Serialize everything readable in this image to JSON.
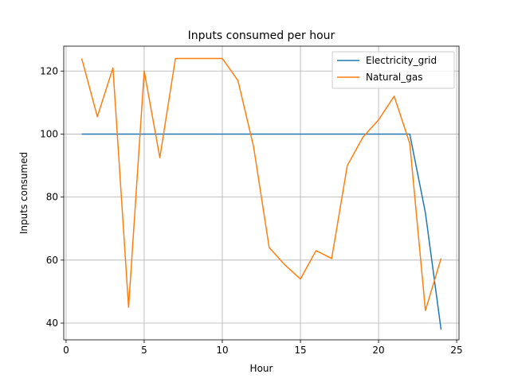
{
  "chart_data": {
    "type": "line",
    "title": "Inputs consumed per hour",
    "xlabel": "Hour",
    "ylabel": "Inputs consumed",
    "xlim": [
      -0.15,
      25.15
    ],
    "ylim": [
      34.7,
      127.9
    ],
    "xticks": [
      0,
      5,
      10,
      15,
      20,
      25
    ],
    "yticks": [
      40,
      60,
      80,
      100,
      120
    ],
    "grid": true,
    "legend_position": "top-right",
    "x": [
      1,
      2,
      3,
      4,
      5,
      6,
      7,
      8,
      9,
      10,
      11,
      12,
      13,
      14,
      15,
      16,
      17,
      18,
      19,
      20,
      21,
      22,
      23,
      24
    ],
    "series": [
      {
        "name": "Electricity_grid",
        "color": "#1f77b4",
        "values": [
          100,
          100,
          100,
          100,
          100,
          100,
          100,
          100,
          100,
          100,
          100,
          100,
          100,
          100,
          100,
          100,
          100,
          100,
          100,
          100,
          100,
          100,
          75,
          38
        ]
      },
      {
        "name": "Natural_gas",
        "color": "#ff7f0e",
        "values": [
          124,
          105.5,
          121,
          45,
          120,
          92.5,
          124,
          124,
          124,
          124,
          117,
          96,
          64,
          58.5,
          54,
          63,
          60.5,
          90,
          99,
          104.5,
          112,
          97,
          44,
          60.5
        ]
      }
    ]
  }
}
